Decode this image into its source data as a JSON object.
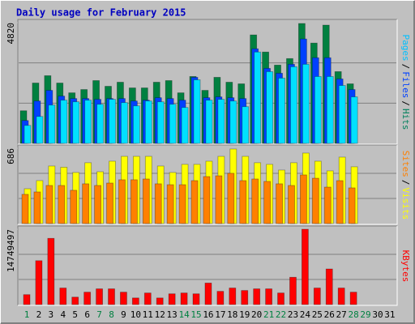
{
  "chart_data": [
    {
      "type": "bar",
      "title": "Daily usage for February 2015",
      "categories": [
        "1",
        "2",
        "3",
        "4",
        "5",
        "6",
        "7",
        "8",
        "9",
        "10",
        "11",
        "12",
        "13",
        "14",
        "15",
        "16",
        "17",
        "18",
        "19",
        "20",
        "21",
        "22",
        "23",
        "24",
        "25",
        "26",
        "27",
        "28",
        "29",
        "30",
        "31"
      ],
      "category_colors": [
        "#008040",
        "#000000",
        "#000000",
        "#000000",
        "#000000",
        "#000000",
        "#008040",
        "#008040",
        "#000000",
        "#000000",
        "#000000",
        "#000000",
        "#000000",
        "#008040",
        "#008040",
        "#000000",
        "#000000",
        "#000000",
        "#000000",
        "#000000",
        "#008040",
        "#008040",
        "#000000",
        "#000000",
        "#000000",
        "#000000",
        "#000000",
        "#008040",
        "#008040",
        "#000000",
        "#000000"
      ],
      "separator": "/",
      "ylim": [
        0,
        4820
      ],
      "yticks": [
        4820
      ],
      "gridlines": [
        1607,
        3213
      ],
      "series": [
        {
          "name": "Hits",
          "color": "#008040",
          "label_color": "#00805c",
          "values": [
            1303,
            2410,
            2703,
            2410,
            2019,
            2150,
            2508,
            2280,
            2443,
            2215,
            2215,
            2443,
            2508,
            2019,
            2671,
            2117,
            2638,
            2443,
            2378,
            4332,
            3648,
            3127,
            3387,
            4788,
            4006,
            4723,
            2866,
            2378,
            null,
            null,
            null
          ]
        },
        {
          "name": "Files",
          "color": "#0040ff",
          "label_color": "#0040ff",
          "values": [
            912,
            1693,
            2117,
            1889,
            1791,
            1791,
            1759,
            1791,
            1791,
            1693,
            1726,
            1824,
            1791,
            1726,
            2638,
            1824,
            1857,
            1824,
            1791,
            3778,
            2996,
            2801,
            3159,
            4169,
            3420,
            3420,
            2573,
            2150,
            null,
            null,
            null
          ]
        },
        {
          "name": "Pages",
          "color": "#00e0ff",
          "label_color": "#00c0ff",
          "values": [
            717,
            1075,
            1531,
            1726,
            1661,
            1726,
            1563,
            1759,
            1628,
            1498,
            1693,
            1661,
            1563,
            1433,
            2540,
            1726,
            1759,
            1693,
            1466,
            3648,
            2866,
            2606,
            3061,
            3159,
            2671,
            2671,
            2312,
            1857,
            null,
            null,
            null
          ]
        }
      ]
    },
    {
      "type": "bar",
      "separator": "/",
      "ylim": [
        0,
        686
      ],
      "yticks": [
        686
      ],
      "gridlines": [
        229,
        457
      ],
      "series": [
        {
          "name": "Visits",
          "color": "#ffff00",
          "label_color": "#ffff00",
          "values": [
            317,
            391,
            524,
            513,
            465,
            554,
            472,
            568,
            612,
            612,
            612,
            524,
            465,
            539,
            539,
            568,
            612,
            679,
            612,
            554,
            539,
            487,
            554,
            642,
            568,
            480,
            605,
            517,
            null,
            null,
            null
          ]
        },
        {
          "name": "Sites",
          "color": "#ff8000",
          "label_color": "#ff8000",
          "values": [
            266,
            288,
            347,
            347,
            303,
            362,
            347,
            369,
            399,
            399,
            406,
            362,
            354,
            354,
            391,
            428,
            435,
            458,
            391,
            406,
            384,
            362,
            347,
            443,
            413,
            332,
            391,
            325,
            null,
            null,
            null
          ]
        }
      ]
    },
    {
      "type": "bar",
      "ylim": [
        0,
        14749497
      ],
      "yticks": [
        14749497
      ],
      "gridlines": [
        4916499,
        9832998
      ],
      "series": [
        {
          "name": "KBytes",
          "color": "#ff0000",
          "label_color": "#ff0000",
          "values": [
            1944984,
            8590346,
            12966560,
            3241640,
            1458738,
            2431230,
            3079558,
            3079558,
            2431230,
            1296656,
            2269148,
            1296656,
            2107066,
            2269148,
            2107066,
            4214132,
            2593312,
            3241640,
            2755394,
            3079558,
            3079558,
            2269148,
            5348706,
            14749497,
            3241640,
            6969526,
            3241640,
            2431230,
            null,
            null,
            null
          ]
        }
      ]
    }
  ]
}
